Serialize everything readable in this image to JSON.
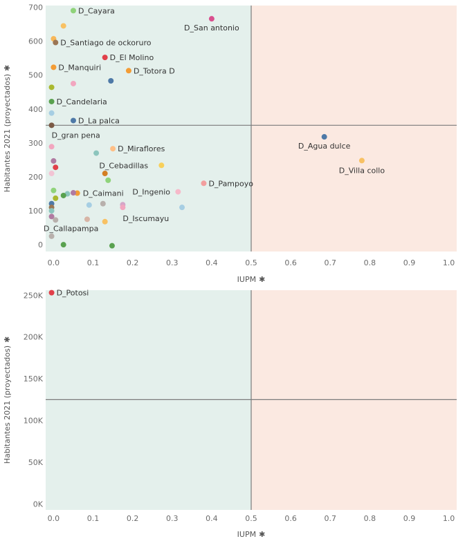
{
  "chart_data": [
    {
      "type": "scatter",
      "xlabel": "IUPM",
      "ylabel": "Habitantes 2021 (proyectados)",
      "axis_marker": "✱",
      "xlim": [
        -0.02,
        1.02
      ],
      "ylim": [
        -20,
        705
      ],
      "x_ticks": [
        0,
        0.1,
        0.2,
        0.3,
        0.4,
        0.5,
        0.6,
        0.7,
        0.8,
        0.9,
        1.0
      ],
      "x_tick_labels": [
        "0.0",
        "0.1",
        "0.2",
        "0.3",
        "0.4",
        "0.5",
        "0.6",
        "0.7",
        "0.8",
        "0.9",
        "1.0"
      ],
      "y_ticks": [
        0,
        100,
        200,
        300,
        400,
        500,
        600,
        700
      ],
      "y_tick_labels": [
        "0",
        "100",
        "200",
        "300",
        "400",
        "500",
        "600",
        "700"
      ],
      "quadrant_split": {
        "x": 0.5,
        "y": 352
      },
      "region_colors": {
        "left": "#e4f0ec",
        "right": "#fbe9e1",
        "line": "#7a7a7a"
      },
      "points": [
        {
          "x": 0.05,
          "y": 690,
          "label": "D_Cayara",
          "color": "#8fd37a"
        },
        {
          "x": 0.4,
          "y": 666,
          "label": "D_San antonio",
          "color": "#d94f8e"
        },
        {
          "x": 0.025,
          "y": 645,
          "label": "",
          "color": "#f8c163"
        },
        {
          "x": 0.0,
          "y": 607,
          "label": "",
          "color": "#f7b758"
        },
        {
          "x": 0.005,
          "y": 596,
          "label": "D_Santiago de ockoruro",
          "color": "#9b7654"
        },
        {
          "x": 0.13,
          "y": 552,
          "label": "D_El Molino",
          "color": "#e1404a"
        },
        {
          "x": 0.0,
          "y": 523,
          "label": "D_Manquiri",
          "color": "#f39c35"
        },
        {
          "x": 0.19,
          "y": 513,
          "label": "D_Totora D",
          "color": "#f39c35"
        },
        {
          "x": 0.145,
          "y": 483,
          "label": "",
          "color": "#4e79a7"
        },
        {
          "x": 0.05,
          "y": 475,
          "label": "",
          "color": "#f2a6bf"
        },
        {
          "x": -0.005,
          "y": 464,
          "label": "",
          "color": "#a9b82f"
        },
        {
          "x": -0.005,
          "y": 422,
          "label": "D_Candelaria",
          "color": "#59a14f"
        },
        {
          "x": -0.005,
          "y": 388,
          "label": "",
          "color": "#a6cee3"
        },
        {
          "x": 0.05,
          "y": 366,
          "label": "D_La palca",
          "color": "#4e79a7"
        },
        {
          "x": -0.005,
          "y": 352,
          "label": "",
          "color": "#7b5a45"
        },
        {
          "x": -0.005,
          "y": 289,
          "label": "D_gran pena",
          "color": "#f2a6bf"
        },
        {
          "x": 0.15,
          "y": 283,
          "label": "D_Miraflores",
          "color": "#ffbf86"
        },
        {
          "x": 0.108,
          "y": 270,
          "label": "",
          "color": "#8cc5bd"
        },
        {
          "x": 0.685,
          "y": 318,
          "label": "D_Agua dulce",
          "color": "#4e79a7"
        },
        {
          "x": 0.78,
          "y": 248,
          "label": "D_Villa collo",
          "color": "#f8c163"
        },
        {
          "x": 0.0,
          "y": 247,
          "label": "",
          "color": "#b07aa1"
        },
        {
          "x": 0.273,
          "y": 234,
          "label": "D_Cebadillas",
          "color": "#f8d05a"
        },
        {
          "x": 0.005,
          "y": 228,
          "label": "",
          "color": "#e1404a"
        },
        {
          "x": 0.13,
          "y": 210,
          "label": "",
          "color": "#d37f22"
        },
        {
          "x": -0.005,
          "y": 210,
          "label": "",
          "color": "#f2c4d4"
        },
        {
          "x": 0.38,
          "y": 181,
          "label": "D_Pampoyo",
          "color": "#f29e9e"
        },
        {
          "x": 0.138,
          "y": 190,
          "label": "",
          "color": "#8fd37a"
        },
        {
          "x": 0.0,
          "y": 160,
          "label": "",
          "color": "#8fd37a"
        },
        {
          "x": 0.315,
          "y": 156,
          "label": "D_Ingenio",
          "color": "#f6b9c9"
        },
        {
          "x": 0.06,
          "y": 152,
          "label": "D_Caimani",
          "color": "#f39c35"
        },
        {
          "x": 0.05,
          "y": 153,
          "label": "",
          "color": "#b07aa1"
        },
        {
          "x": 0.035,
          "y": 150,
          "label": "",
          "color": "#8cc5bd"
        },
        {
          "x": 0.025,
          "y": 145,
          "label": "",
          "color": "#59a14f"
        },
        {
          "x": 0.005,
          "y": 137,
          "label": "",
          "color": "#a9b82f"
        },
        {
          "x": -0.005,
          "y": 121,
          "label": "",
          "color": "#4e79a7"
        },
        {
          "x": 0.125,
          "y": 121,
          "label": "",
          "color": "#b8b0ac"
        },
        {
          "x": 0.09,
          "y": 117,
          "label": "",
          "color": "#a6cee3"
        },
        {
          "x": 0.175,
          "y": 118,
          "label": "",
          "color": "#d4a6c8"
        },
        {
          "x": 0.325,
          "y": 110,
          "label": "",
          "color": "#a6cee3"
        },
        {
          "x": 0.175,
          "y": 110,
          "label": "D_Iscumayu",
          "color": "#f2a6bf"
        },
        {
          "x": -0.005,
          "y": 110,
          "label": "",
          "color": "#9b7654"
        },
        {
          "x": -0.005,
          "y": 100,
          "label": "",
          "color": "#8cc5bd"
        },
        {
          "x": -0.005,
          "y": 83,
          "label": "",
          "color": "#b07aa1"
        },
        {
          "x": 0.005,
          "y": 73,
          "label": "",
          "color": "#b8b0ac"
        },
        {
          "x": 0.085,
          "y": 75,
          "label": "D_Callapampa",
          "color": "#d7b5a6"
        },
        {
          "x": 0.13,
          "y": 68,
          "label": "",
          "color": "#f8c163"
        },
        {
          "x": -0.005,
          "y": 25,
          "label": "",
          "color": "#b8b0ac"
        },
        {
          "x": 0.025,
          "y": 0,
          "label": "",
          "color": "#59a14f"
        },
        {
          "x": 0.148,
          "y": -3,
          "label": "",
          "color": "#59a14f"
        }
      ]
    },
    {
      "type": "scatter",
      "xlabel": "IUPM",
      "ylabel": "Habitantes 2021 (proyectados)",
      "axis_marker": "✱",
      "xlim": [
        -0.02,
        1.02
      ],
      "ylim": [
        -7000,
        256000
      ],
      "x_ticks": [
        0,
        0.1,
        0.2,
        0.3,
        0.4,
        0.5,
        0.6,
        0.7,
        0.8,
        0.9,
        1.0
      ],
      "x_tick_labels": [
        "0.0",
        "0.1",
        "0.2",
        "0.3",
        "0.4",
        "0.5",
        "0.6",
        "0.7",
        "0.8",
        "0.9",
        "1.0"
      ],
      "y_ticks": [
        0,
        50000,
        100000,
        150000,
        200000,
        250000
      ],
      "y_tick_labels": [
        "0K",
        "50K",
        "100K",
        "150K",
        "200K",
        "250K"
      ],
      "quadrant_split": {
        "x": 0.5,
        "y": 125000
      },
      "region_colors": {
        "left": "#e4f0ec",
        "right": "#fbe9e1",
        "line": "#7a7a7a"
      },
      "points": [
        {
          "x": -0.005,
          "y": 253000,
          "label": "D_Potosi",
          "color": "#e1404a"
        }
      ]
    }
  ]
}
